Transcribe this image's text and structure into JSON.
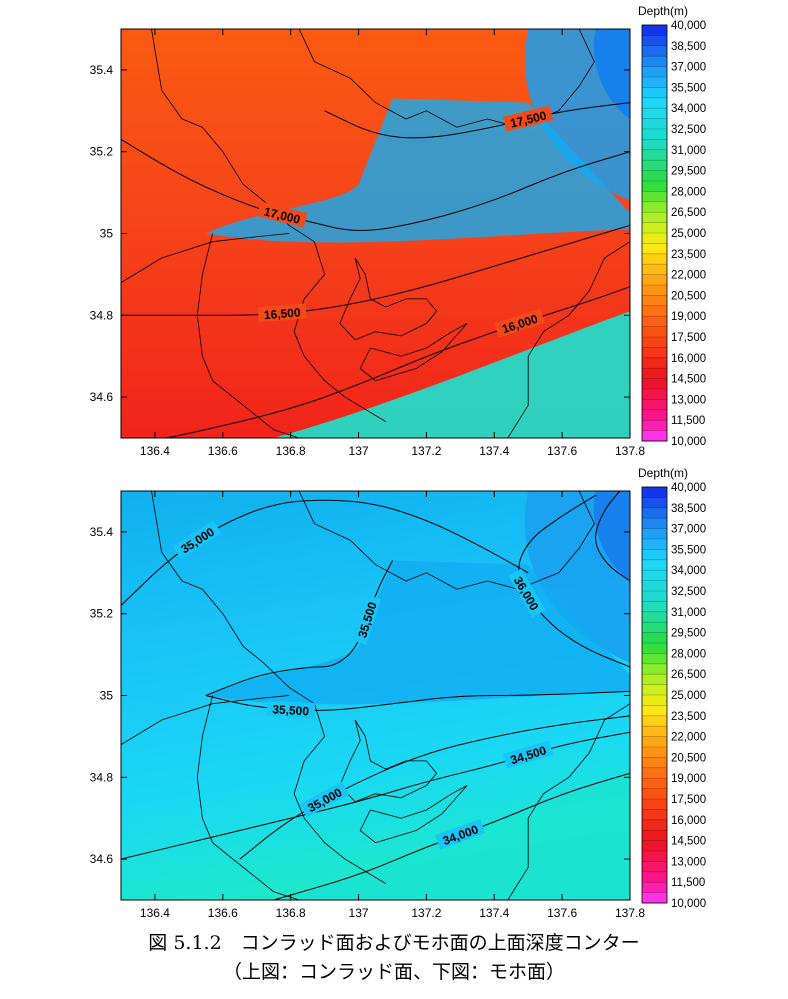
{
  "chart_data": [
    {
      "type": "heatmap",
      "name": "conrad",
      "xlim": [
        136.3,
        137.8
      ],
      "ylim": [
        34.5,
        35.5
      ],
      "xticks": [
        "136.4",
        "136.6",
        "136.8",
        "137",
        "137.2",
        "137.4",
        "137.6",
        "137.8"
      ],
      "yticks": [
        "34.6",
        "34.8",
        "35",
        "35.2",
        "35.4"
      ],
      "colorbar_title": "Depth(m)",
      "colorbar_range": [
        10000,
        40000
      ],
      "contours": [
        {
          "level": 16000,
          "label": "16,000",
          "points": [
            [
              136.3,
              34.48
            ],
            [
              136.5,
              34.51
            ],
            [
              136.8,
              34.57
            ],
            [
              137.0,
              34.63
            ],
            [
              137.2,
              34.7
            ],
            [
              137.4,
              34.76
            ],
            [
              137.55,
              34.8
            ],
            [
              137.7,
              34.84
            ],
            [
              137.8,
              34.87
            ]
          ]
        },
        {
          "level": 16500,
          "label": "16,500",
          "points": [
            [
              136.3,
              34.8
            ],
            [
              136.5,
              34.8
            ],
            [
              136.7,
              34.8
            ],
            [
              136.85,
              34.81
            ],
            [
              137.0,
              34.83
            ],
            [
              137.2,
              34.87
            ],
            [
              137.4,
              34.92
            ],
            [
              137.6,
              34.97
            ],
            [
              137.8,
              35.02
            ]
          ]
        },
        {
          "level": 17000,
          "label": "17,000",
          "points": [
            [
              136.3,
              35.23
            ],
            [
              136.5,
              35.13
            ],
            [
              136.7,
              35.06
            ],
            [
              136.85,
              35.03
            ],
            [
              137.0,
              35.0
            ],
            [
              137.2,
              35.03
            ],
            [
              137.4,
              35.08
            ],
            [
              137.6,
              35.15
            ],
            [
              137.8,
              35.2
            ]
          ]
        },
        {
          "level": 17500,
          "label": "17,500",
          "points": [
            [
              136.9,
              35.3
            ],
            [
              137.05,
              35.24
            ],
            [
              137.2,
              35.23
            ],
            [
              137.4,
              35.26
            ],
            [
              137.6,
              35.3
            ],
            [
              137.8,
              35.32
            ]
          ]
        }
      ]
    },
    {
      "type": "heatmap",
      "name": "moho",
      "xlim": [
        136.3,
        137.8
      ],
      "ylim": [
        34.5,
        35.5
      ],
      "xticks": [
        "136.4",
        "136.6",
        "136.8",
        "137",
        "137.2",
        "137.4",
        "137.6",
        "137.8"
      ],
      "yticks": [
        "34.6",
        "34.8",
        "35",
        "35.2",
        "35.4"
      ],
      "colorbar_title": "Depth(m)",
      "colorbar_range": [
        10000,
        40000
      ],
      "contours": [
        {
          "level": 34000,
          "label": "34,000",
          "points": [
            [
              136.75,
              34.5
            ],
            [
              137.0,
              34.56
            ],
            [
              137.2,
              34.63
            ],
            [
              137.4,
              34.69
            ],
            [
              137.6,
              34.76
            ],
            [
              137.8,
              34.81
            ]
          ]
        },
        {
          "level": 34500,
          "label": "34,500",
          "points": [
            [
              136.3,
              34.6
            ],
            [
              136.6,
              34.66
            ],
            [
              136.8,
              34.7
            ],
            [
              137.0,
              34.74
            ],
            [
              137.2,
              34.79
            ],
            [
              137.4,
              34.83
            ],
            [
              137.6,
              34.88
            ],
            [
              137.8,
              34.91
            ]
          ]
        },
        {
          "level": 35000,
          "label": "35,000",
          "points": [
            [
              136.3,
              35.22
            ],
            [
              136.45,
              35.34
            ],
            [
              136.6,
              35.42
            ],
            [
              136.75,
              35.47
            ],
            [
              136.9,
              35.48
            ],
            [
              137.05,
              35.47
            ],
            [
              137.2,
              35.43
            ],
            [
              137.35,
              35.37
            ],
            [
              137.5,
              35.3
            ]
          ]
        },
        {
          "level": 35000,
          "label": "35,000",
          "points": [
            [
              136.65,
              34.6
            ],
            [
              136.8,
              34.7
            ],
            [
              137.0,
              34.79
            ],
            [
              137.2,
              34.86
            ],
            [
              137.4,
              34.9
            ],
            [
              137.6,
              34.93
            ],
            [
              137.8,
              34.95
            ]
          ]
        },
        {
          "level": 35500,
          "label": "35,500",
          "points": [
            [
              136.55,
              35.0
            ],
            [
              136.7,
              35.05
            ],
            [
              136.85,
              35.07
            ],
            [
              136.93,
              35.07
            ],
            [
              137.0,
              35.12
            ],
            [
              137.05,
              35.25
            ],
            [
              137.1,
              35.33
            ]
          ]
        },
        {
          "level": 35500,
          "label": "35,500",
          "points": [
            [
              136.55,
              35.0
            ],
            [
              136.7,
              34.97
            ],
            [
              136.9,
              34.96
            ],
            [
              137.1,
              34.98
            ],
            [
              137.3,
              35.0
            ],
            [
              137.5,
              35.0
            ],
            [
              137.8,
              35.01
            ]
          ]
        },
        {
          "level": 36000,
          "label": "36,000",
          "points": [
            [
              137.8,
              35.07
            ],
            [
              137.65,
              35.12
            ],
            [
              137.53,
              35.2
            ],
            [
              137.46,
              35.3
            ],
            [
              137.5,
              35.38
            ],
            [
              137.6,
              35.44
            ],
            [
              137.7,
              35.49
            ]
          ]
        },
        {
          "level": 36500,
          "label": "",
          "points": [
            [
              137.8,
              35.28
            ],
            [
              137.73,
              35.32
            ],
            [
              137.69,
              35.38
            ],
            [
              137.72,
              35.45
            ],
            [
              137.77,
              35.5
            ]
          ]
        }
      ]
    }
  ],
  "caption": {
    "line1": "図 5.1.2　コンラッド面およびモホ面の上面深度コンター",
    "line2": "（上図：コンラッド面、下図：モホ面）"
  },
  "colors": {
    "conrad_base": "#f74a14",
    "moho_base": "#16c8f6",
    "axis": "#000000"
  }
}
